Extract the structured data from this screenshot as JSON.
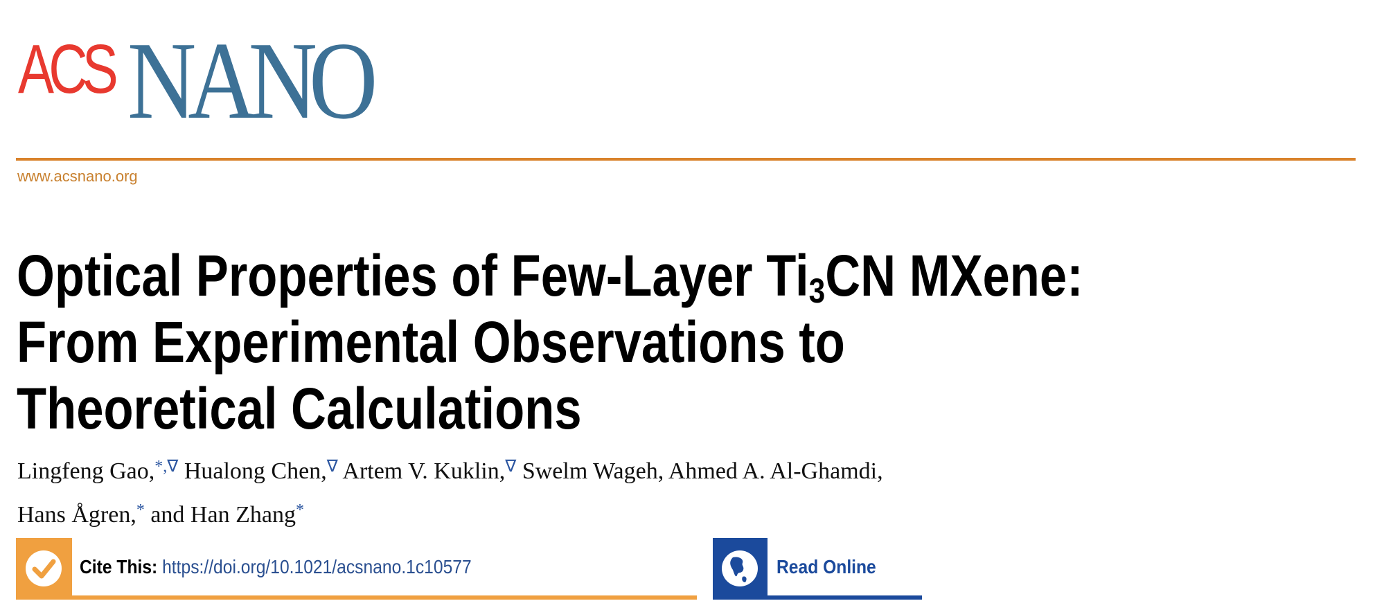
{
  "journal": {
    "logo_text_acs": "ACS",
    "logo_text_nano": "NANO",
    "url": "www.acsnano.org",
    "colors": {
      "acs_red": "#e8392f",
      "nano_blue": "#3d7196",
      "rule_orange": "#d9822b",
      "cite_orange": "#f0a040",
      "read_blue": "#1b4a9c"
    }
  },
  "article": {
    "title_line1_a": "Optical Properties of Few-Layer Ti",
    "title_line1_sub": "3",
    "title_line1_b": "CN MXene:",
    "title_line2": "From Experimental Observations to",
    "title_line3": "Theoretical Calculations",
    "authors": [
      {
        "name": "Lingfeng Gao,",
        "marks": "*,∇"
      },
      {
        "name": "Hualong Chen,",
        "marks": "∇"
      },
      {
        "name": "Artem V. Kuklin,",
        "marks": "∇"
      },
      {
        "name": "Swelm Wageh, Ahmed A. Al-Ghamdi,",
        "marks": ""
      },
      {
        "name": "Hans Ågren,",
        "marks": "*"
      },
      {
        "name": "and Han Zhang",
        "marks": "*"
      }
    ]
  },
  "cite": {
    "label": "Cite This:",
    "doi": "https://doi.org/10.1021/acsnano.1c10577",
    "icon": "checkmark-icon"
  },
  "read_online": {
    "label": "Read Online",
    "icon": "globe-icon"
  }
}
